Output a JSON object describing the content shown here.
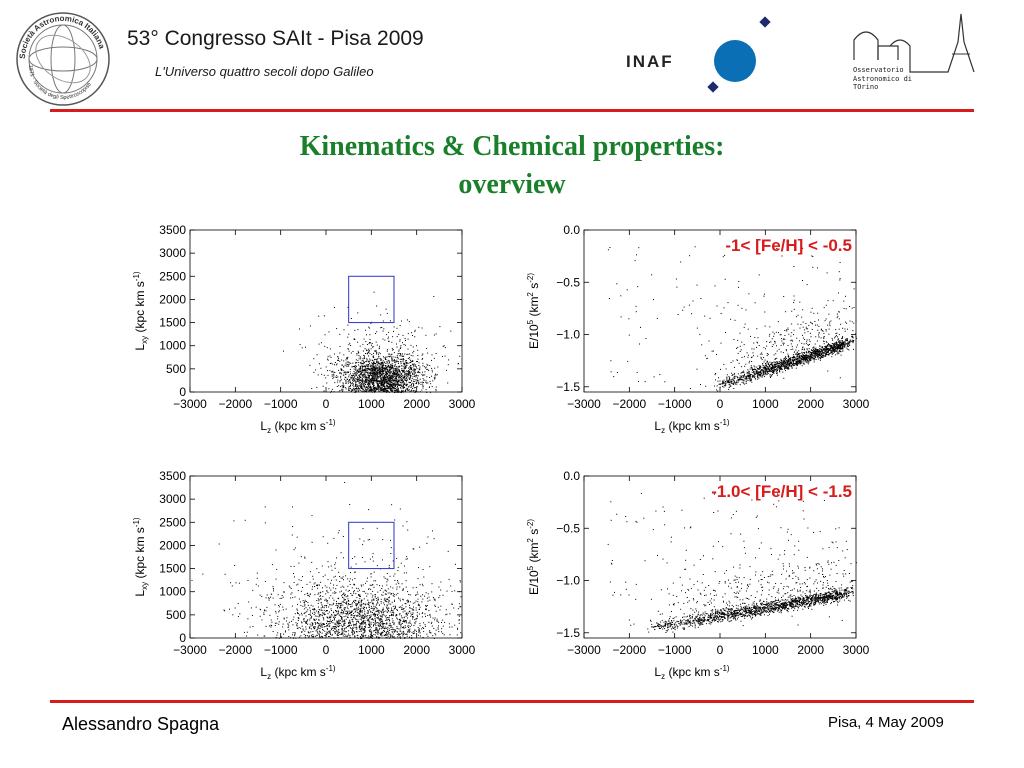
{
  "header": {
    "conference_title": "53° Congresso SAIt - Pisa 2009",
    "conference_subtitle": "L'Universo quattro secoli dopo Galileo",
    "sait_logo_text": "Società Astronomica Italiana",
    "sait_logo_bottom_text": "1871 · Società degli Spettroscopisti",
    "inaf_text": "INAF",
    "observatory_lines": [
      "Osservatorio",
      "Astronomico di",
      "TOrino"
    ]
  },
  "slide": {
    "title_line1": "Kinematics & Chemical properties:",
    "title_line2": "overview"
  },
  "footer": {
    "author": "Alessandro Spagna",
    "date": "Pisa, 4 May 2009"
  },
  "colors": {
    "rule": "#d81b1b",
    "title": "#1a7f2a",
    "annotation": "#d81b1b",
    "box": "#2b35c7",
    "inaf_blue": "#0a6fb5",
    "inaf_navy": "#1f2a6b"
  },
  "chart_data": [
    {
      "type": "scatter",
      "panel": "top-left",
      "xlabel": "L_z (kpc km s^-1)",
      "ylabel": "L_xy (kpc km s^-1)",
      "xlim": [
        -3000,
        3000
      ],
      "ylim": [
        0,
        3500
      ],
      "xticks": [
        -3000,
        -2000,
        -1000,
        0,
        1000,
        2000,
        3000
      ],
      "yticks": [
        0,
        500,
        1000,
        1500,
        2000,
        2500,
        3000,
        3500
      ],
      "highlight_box": {
        "x": [
          500,
          1500
        ],
        "y": [
          1500,
          2500
        ]
      },
      "point_cloud": {
        "center": [
          1200,
          300
        ],
        "spread": [
          450,
          250
        ],
        "n_points": 2200
      }
    },
    {
      "type": "scatter",
      "panel": "top-right",
      "annotation": "-1< [Fe/H] < -0.5",
      "xlabel": "L_z (kpc km s^-1)",
      "ylabel": "E/10^5 (km^2 s^-2)",
      "xlim": [
        -3000,
        3000
      ],
      "ylim": [
        -1.55,
        0.0
      ],
      "xticks": [
        -3000,
        -2000,
        -1000,
        0,
        1000,
        2000,
        3000
      ],
      "yticks": [
        0.0,
        -0.5,
        -1.0,
        -1.5
      ],
      "point_cloud": {
        "trend_from": [
          0,
          -1.48
        ],
        "trend_to": [
          2800,
          -1.08
        ],
        "n_points": 1800
      }
    },
    {
      "type": "scatter",
      "panel": "bottom-left",
      "xlabel": "L_z (kpc km s^-1)",
      "ylabel": "L_xy (kpc km s^-1)",
      "xlim": [
        -3000,
        3000
      ],
      "ylim": [
        0,
        3500
      ],
      "xticks": [
        -3000,
        -2000,
        -1000,
        0,
        1000,
        2000,
        3000
      ],
      "yticks": [
        0,
        500,
        1000,
        1500,
        2000,
        2500,
        3000,
        3500
      ],
      "highlight_box": {
        "x": [
          500,
          1500
        ],
        "y": [
          1500,
          2500
        ]
      },
      "point_cloud": {
        "center": [
          700,
          400
        ],
        "spread": [
          900,
          400
        ],
        "n_points": 2000
      }
    },
    {
      "type": "scatter",
      "panel": "bottom-right",
      "annotation": "-1.0< [Fe/H] < -1.5",
      "xlabel": "L_z (kpc km s^-1)",
      "ylabel": "E/10^5 (km^2 s^-2)",
      "xlim": [
        -3000,
        3000
      ],
      "ylim": [
        -1.55,
        0.0
      ],
      "xticks": [
        -3000,
        -2000,
        -1000,
        0,
        1000,
        2000,
        3000
      ],
      "yticks": [
        0.0,
        -0.5,
        -1.0,
        -1.5
      ],
      "point_cloud": {
        "trend_from": [
          -1500,
          -1.45
        ],
        "trend_to": [
          2800,
          -1.12
        ],
        "n_points": 1900
      }
    }
  ]
}
